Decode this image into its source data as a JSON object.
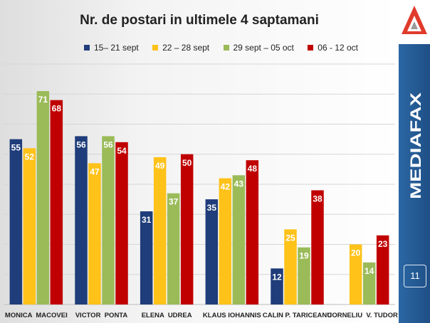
{
  "chart_data": {
    "type": "bar",
    "title": "Nr. de postari in ultimele 4 saptamani",
    "categories": [
      "MONICA  MACOVEI",
      "VICTOR  PONTA",
      "ELENA  UDREA",
      "KLAUS IOHANNIS",
      "CALIN P. TARICEANU",
      "CORNELIU  V. TUDOR"
    ],
    "series": [
      {
        "name": "15– 21 sept",
        "color": "#1f3d7a",
        "values": [
          55,
          56,
          31,
          35,
          12,
          null
        ]
      },
      {
        "name": "22 – 28 sept",
        "color": "#ffc219",
        "values": [
          52,
          47,
          49,
          42,
          25,
          20
        ]
      },
      {
        "name": "29 sept – 05 oct",
        "color": "#9bbb59",
        "values": [
          71,
          56,
          37,
          43,
          19,
          14
        ]
      },
      {
        "name": "06 - 12 oct",
        "color": "#c00000",
        "values": [
          68,
          54,
          50,
          48,
          38,
          23
        ]
      }
    ],
    "ylim": [
      0,
      80
    ],
    "grid": true,
    "legend": "top"
  },
  "sidebar": {
    "brand": "MEDIAFAX",
    "page_number": "11"
  }
}
